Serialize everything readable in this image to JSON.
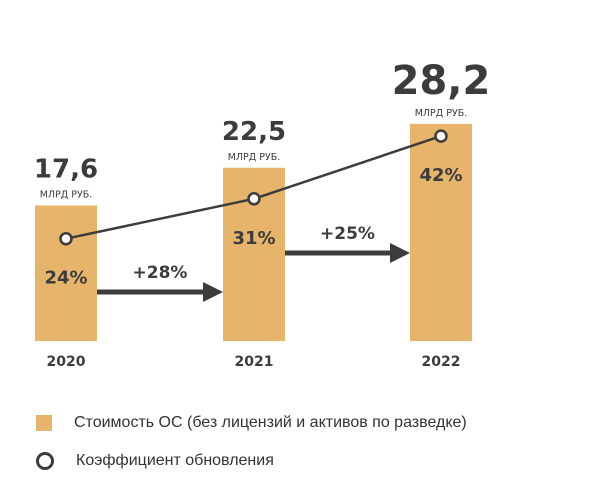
{
  "chart_data": {
    "type": "bar",
    "categories": [
      "2020",
      "2021",
      "2022"
    ],
    "series": [
      {
        "name": "Стоимость ОС (без лицензий и активов по разведке)",
        "values": [
          17.6,
          22.5,
          28.2
        ],
        "labels": [
          "17,6",
          "22,5",
          "28,2"
        ],
        "unit": "МЛРД РУБ."
      },
      {
        "name": "Коэффициент обновления",
        "values": [
          24,
          31,
          42
        ],
        "labels": [
          "24%",
          "31%",
          "42%"
        ]
      }
    ],
    "growth": [
      {
        "from": "2020",
        "to": "2021",
        "label": "+28%"
      },
      {
        "from": "2021",
        "to": "2022",
        "label": "+25%"
      }
    ],
    "colors": {
      "bar": "#e6b46a",
      "line": "#3c3c3c",
      "arrow": "#3c3c3c"
    }
  },
  "legend": [
    {
      "label": "Стоимость ОС (без лицензий и активов по разведке)",
      "marker": "square"
    },
    {
      "label": "Коэффициент обновления",
      "marker": "circle"
    }
  ]
}
